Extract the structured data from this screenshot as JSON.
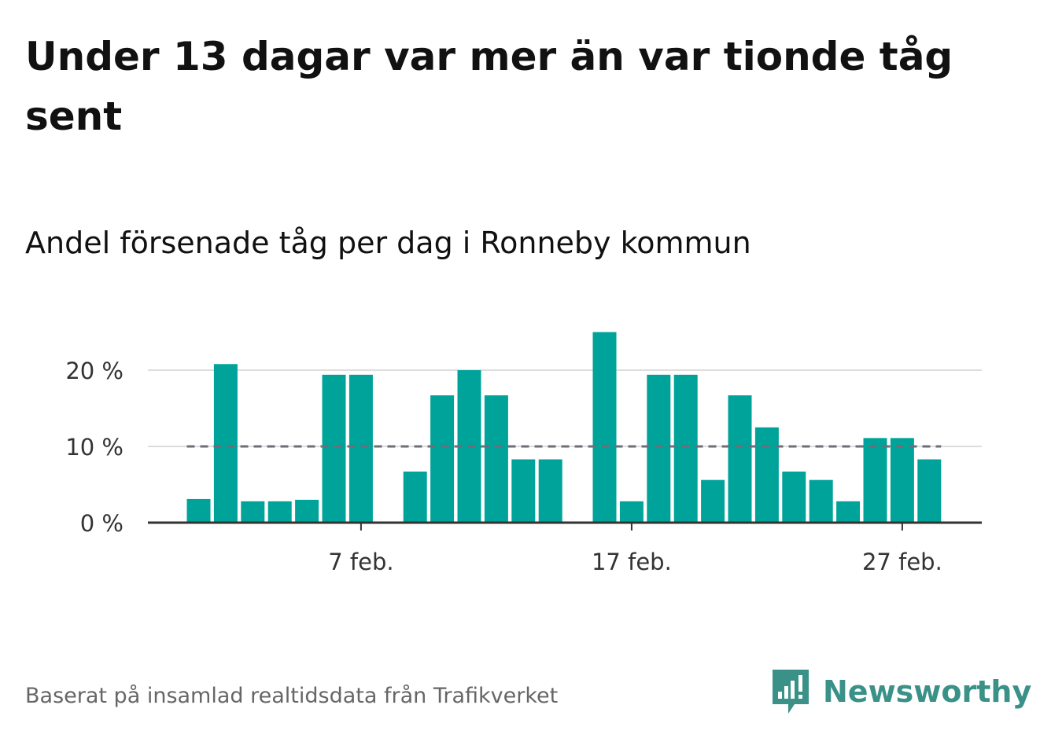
{
  "title": "Under 13 dagar var mer än var tionde tåg sent",
  "subtitle": "Andel försenade tåg per dag i Ronneby kommun",
  "footer": "Baserat på insamlad realtidsdata från Trafikverket",
  "brand": {
    "name": "Newsworthy",
    "logo_icon": "bar-chart-speech-bubble-icon",
    "color": "#3a9188"
  },
  "chart_data": {
    "type": "bar",
    "x_dates": [
      "1 feb.",
      "2 feb.",
      "3 feb.",
      "4 feb.",
      "5 feb.",
      "6 feb.",
      "7 feb.",
      "8 feb.",
      "9 feb.",
      "10 feb.",
      "11 feb.",
      "12 feb.",
      "13 feb.",
      "14 feb.",
      "15 feb.",
      "16 feb.",
      "17 feb.",
      "18 feb.",
      "19 feb.",
      "20 feb.",
      "21 feb.",
      "22 feb.",
      "23 feb.",
      "24 feb.",
      "25 feb.",
      "26 feb.",
      "27 feb.",
      "28 feb."
    ],
    "values": [
      3.1,
      20.8,
      2.8,
      2.8,
      3.0,
      19.4,
      19.4,
      0,
      6.7,
      16.7,
      20.0,
      16.7,
      8.3,
      8.3,
      0,
      25.0,
      2.8,
      19.4,
      19.4,
      5.6,
      16.7,
      12.5,
      6.7,
      5.6,
      2.8,
      11.1,
      11.1,
      8.3
    ],
    "x_tick_labels": [
      "7 feb.",
      "17 feb.",
      "27 feb."
    ],
    "y_tick_labels": [
      "0 %",
      "10 %",
      "20 %"
    ],
    "y_ticks": [
      0,
      10,
      20
    ],
    "ylim": [
      0,
      26
    ],
    "reference_line": 10,
    "bar_color": "#00a39a",
    "reference_color": "#6e6e78",
    "grid": true
  }
}
